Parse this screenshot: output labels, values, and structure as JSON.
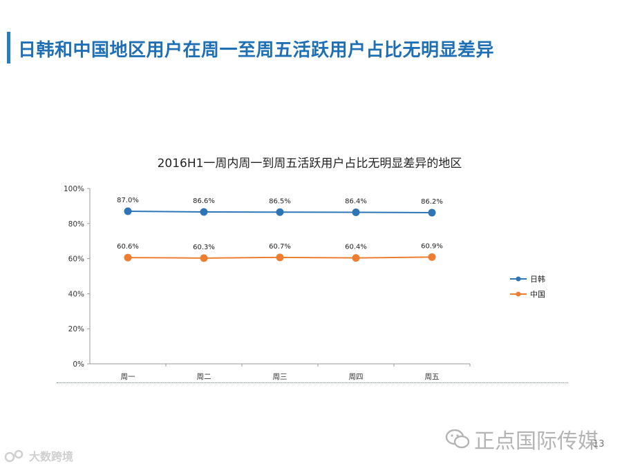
{
  "slide": {
    "title": "日韩和中国地区用户在周一至周五活跃用户占比无明显差异",
    "page_number": "13",
    "brand": "正点国际传媒",
    "watermark": "大数跨境",
    "accent_color": "#2a7dbd"
  },
  "chart_data": {
    "type": "line",
    "title": "2016H1一周内周一到周五活跃用户占比无明显差异的地区",
    "xlabel": "",
    "ylabel": "",
    "categories": [
      "周一",
      "周二",
      "周三",
      "周四",
      "周五"
    ],
    "ylim": [
      0,
      100
    ],
    "yticks": [
      "0%",
      "20%",
      "40%",
      "60%",
      "80%",
      "100%"
    ],
    "grid": false,
    "legend_position": "right",
    "series": [
      {
        "name": "日韩",
        "values": [
          87.0,
          86.6,
          86.5,
          86.4,
          86.2
        ],
        "labels": [
          "87.0%",
          "86.6%",
          "86.5%",
          "86.4%",
          "86.2%"
        ],
        "color": "#2e75b6"
      },
      {
        "name": "中国",
        "values": [
          60.6,
          60.3,
          60.7,
          60.4,
          60.9
        ],
        "labels": [
          "60.6%",
          "60.3%",
          "60.7%",
          "60.4%",
          "60.9%"
        ],
        "color": "#ed7d31"
      }
    ]
  }
}
